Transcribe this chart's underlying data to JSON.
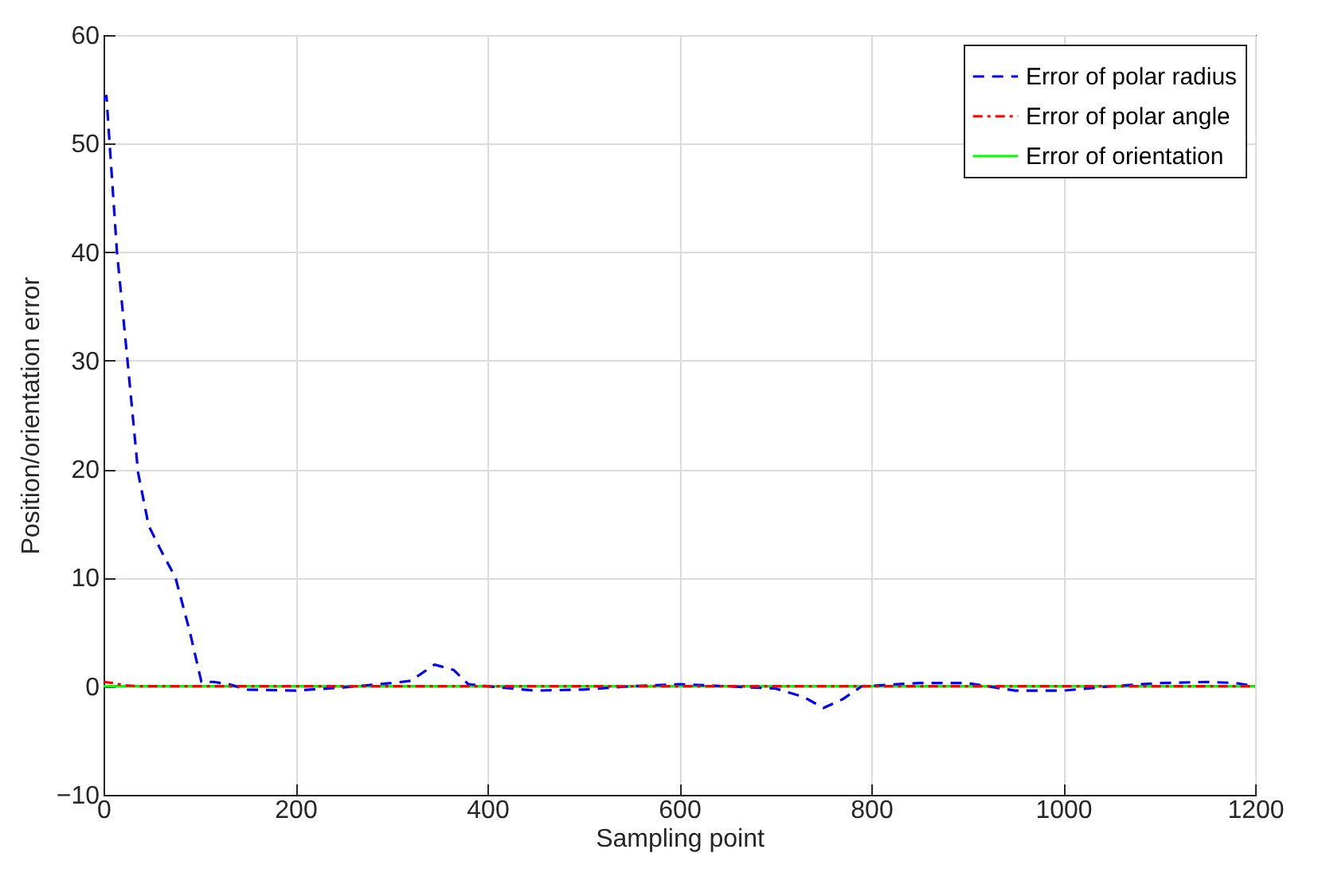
{
  "chart_data": {
    "type": "line",
    "xlabel": "Sampling point",
    "ylabel": "Position/orientation error",
    "xlim": [
      0,
      1200
    ],
    "ylim": [
      -10,
      60
    ],
    "xticks": [
      0,
      200,
      400,
      600,
      800,
      1000,
      1200
    ],
    "yticks": [
      -10,
      0,
      10,
      20,
      30,
      40,
      50,
      60
    ],
    "grid": true,
    "legend": "top right",
    "series": [
      {
        "name": "Error of polar radius",
        "color": "#0000ff",
        "line_style": "dashed",
        "x": [
          0,
          3,
          14,
          25,
          36,
          47,
          60,
          75,
          90,
          102,
          115,
          130,
          150,
          200,
          250,
          300,
          320,
          345,
          365,
          380,
          400,
          450,
          500,
          550,
          600,
          650,
          700,
          730,
          750,
          770,
          790,
          850,
          900,
          950,
          1000,
          1050,
          1100,
          1150,
          1180,
          1200
        ],
        "values": [
          54,
          54.4,
          40,
          30,
          19.7,
          14.8,
          12.5,
          10,
          5,
          0.4,
          0.4,
          0.2,
          -0.3,
          -0.4,
          -0.1,
          0.3,
          0.5,
          2,
          1.5,
          0.2,
          0,
          -0.4,
          -0.3,
          0,
          0.2,
          0,
          -0.2,
          -1,
          -2,
          -1.2,
          0,
          0.3,
          0.3,
          -0.4,
          -0.4,
          0,
          0.3,
          0.4,
          0.3,
          0
        ]
      },
      {
        "name": "Error of polar angle",
        "color": "#ff0000",
        "line_style": "dashdot",
        "x": [
          0,
          10,
          20,
          40,
          1200
        ],
        "values": [
          0.4,
          0.3,
          0.1,
          0,
          0
        ]
      },
      {
        "name": "Error of orientation",
        "color": "#00ff00",
        "line_style": "solid",
        "x": [
          0,
          1200
        ],
        "values": [
          0,
          0
        ]
      }
    ]
  }
}
